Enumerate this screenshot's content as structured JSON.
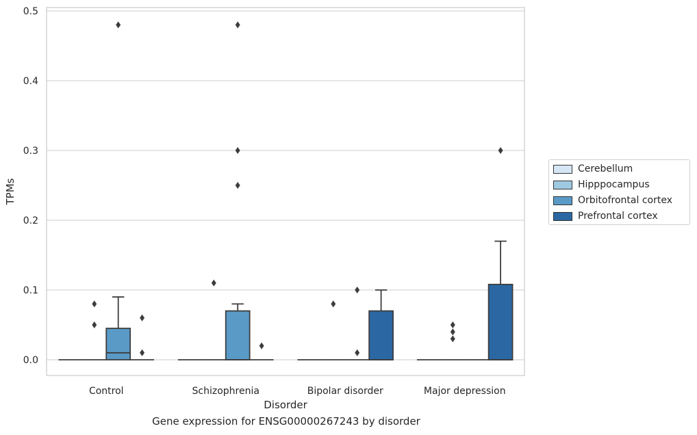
{
  "chart_data": {
    "type": "box",
    "xlabel": "Disorder",
    "ylabel": "TPMs",
    "caption": "Gene expression for ENSG00000267243 by disorder",
    "ylim": [
      -0.023,
      0.505
    ],
    "yticks": [
      0.0,
      0.1,
      0.2,
      0.3,
      0.4,
      0.5
    ],
    "ytick_labels": [
      "0.0",
      "0.1",
      "0.2",
      "0.3",
      "0.4",
      "0.5"
    ],
    "grid": "horizontal",
    "legend_position": "right",
    "categories": [
      "Control",
      "Schizophrenia",
      "Bipolar disorder",
      "Major depression"
    ],
    "series": [
      {
        "name": "Cerebellum",
        "color": "#d6e6f4",
        "boxes": [
          {
            "q1": 0,
            "median": 0,
            "q3": 0,
            "whisker_low": 0,
            "whisker_high": 0,
            "outliers": []
          },
          {
            "q1": 0,
            "median": 0,
            "q3": 0,
            "whisker_low": 0,
            "whisker_high": 0,
            "outliers": []
          },
          {
            "q1": 0,
            "median": 0,
            "q3": 0,
            "whisker_low": 0,
            "whisker_high": 0,
            "outliers": []
          },
          {
            "q1": 0,
            "median": 0,
            "q3": 0,
            "whisker_low": 0,
            "whisker_high": 0,
            "outliers": []
          }
        ]
      },
      {
        "name": "Hipppocampus",
        "color": "#9ecae1",
        "boxes": [
          {
            "q1": 0,
            "median": 0,
            "q3": 0,
            "whisker_low": 0,
            "whisker_high": 0,
            "outliers": [
              0.08,
              0.05
            ]
          },
          {
            "q1": 0,
            "median": 0,
            "q3": 0,
            "whisker_low": 0,
            "whisker_high": 0,
            "outliers": [
              0.11
            ]
          },
          {
            "q1": 0,
            "median": 0,
            "q3": 0,
            "whisker_low": 0,
            "whisker_high": 0,
            "outliers": [
              0.08
            ]
          },
          {
            "q1": 0,
            "median": 0,
            "q3": 0,
            "whisker_low": 0,
            "whisker_high": 0,
            "outliers": [
              0.05,
              0.04,
              0.03
            ]
          }
        ]
      },
      {
        "name": "Orbitofrontal cortex",
        "color": "#5a9ac7",
        "boxes": [
          {
            "q1": 0,
            "median": 0.01,
            "q3": 0.045,
            "whisker_low": 0,
            "whisker_high": 0.09,
            "outliers": [
              0.48
            ]
          },
          {
            "q1": 0,
            "median": 0,
            "q3": 0.07,
            "whisker_low": 0,
            "whisker_high": 0.08,
            "outliers": [
              0.48,
              0.3,
              0.25
            ]
          },
          {
            "q1": 0,
            "median": 0,
            "q3": 0,
            "whisker_low": 0,
            "whisker_high": 0,
            "outliers": [
              0.1,
              0.01
            ]
          },
          {
            "q1": 0,
            "median": 0,
            "q3": 0,
            "whisker_low": 0,
            "whisker_high": 0,
            "outliers": []
          }
        ]
      },
      {
        "name": "Prefrontal cortex",
        "color": "#2b68a3",
        "boxes": [
          {
            "q1": 0,
            "median": 0,
            "q3": 0,
            "whisker_low": 0,
            "whisker_high": 0,
            "outliers": [
              0.06,
              0.01
            ]
          },
          {
            "q1": 0,
            "median": 0,
            "q3": 0,
            "whisker_low": 0,
            "whisker_high": 0,
            "outliers": [
              0.02
            ]
          },
          {
            "q1": 0,
            "median": 0,
            "q3": 0.07,
            "whisker_low": 0,
            "whisker_high": 0.1,
            "outliers": []
          },
          {
            "q1": 0,
            "median": 0,
            "q3": 0.108,
            "whisker_low": 0,
            "whisker_high": 0.17,
            "outliers": [
              0.3
            ]
          }
        ]
      }
    ]
  }
}
